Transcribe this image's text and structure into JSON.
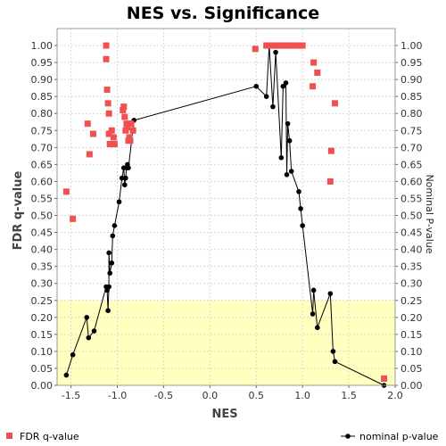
{
  "chart_data": {
    "type": "scatter",
    "title": "NES vs. Significance",
    "xlabel": "NES",
    "ylabel_left": "FDR q-value",
    "ylabel_right": "Nominal P-value",
    "xlim": [
      -1.65,
      2.0
    ],
    "ylim": [
      0.0,
      1.05
    ],
    "x_ticks": [
      "-1.5",
      "-1.0",
      "-0.5",
      "0.0",
      "0.5",
      "1.0",
      "1.5",
      "2.0"
    ],
    "y_ticks": [
      "0.00",
      "0.05",
      "0.10",
      "0.15",
      "0.20",
      "0.25",
      "0.30",
      "0.35",
      "0.40",
      "0.45",
      "0.50",
      "0.55",
      "0.60",
      "0.65",
      "0.70",
      "0.75",
      "0.80",
      "0.85",
      "0.90",
      "0.95",
      "1.00"
    ],
    "highlight_band": {
      "y_range": [
        0.0,
        0.25
      ],
      "color": "#ffffc0"
    },
    "grid": true,
    "legend_position": "bottom",
    "series": [
      {
        "name": "FDR q-value",
        "kind": "scatter-square",
        "color": "#f05050",
        "points": [
          [
            -1.55,
            0.57
          ],
          [
            -1.48,
            0.49
          ],
          [
            -1.32,
            0.77
          ],
          [
            -1.3,
            0.68
          ],
          [
            -1.26,
            0.74
          ],
          [
            -1.12,
            1.0
          ],
          [
            -1.12,
            0.96
          ],
          [
            -1.11,
            0.87
          ],
          [
            -1.1,
            0.83
          ],
          [
            -1.09,
            0.8
          ],
          [
            -1.09,
            0.74
          ],
          [
            -1.08,
            0.71
          ],
          [
            -1.06,
            0.75
          ],
          [
            -1.05,
            0.71
          ],
          [
            -1.04,
            0.73
          ],
          [
            -1.03,
            0.71
          ],
          [
            -0.94,
            0.81
          ],
          [
            -0.93,
            0.82
          ],
          [
            -0.92,
            0.79
          ],
          [
            -0.91,
            0.75
          ],
          [
            -0.9,
            0.77
          ],
          [
            -0.89,
            0.76
          ],
          [
            -0.88,
            0.72
          ],
          [
            -0.87,
            0.73
          ],
          [
            -0.86,
            0.72
          ],
          [
            -0.85,
            0.77
          ],
          [
            -0.83,
            0.75
          ],
          [
            0.49,
            0.99
          ],
          [
            0.61,
            1.0
          ],
          [
            0.64,
            1.0
          ],
          [
            0.67,
            1.0
          ],
          [
            0.69,
            1.0
          ],
          [
            0.71,
            1.0
          ],
          [
            0.73,
            1.0
          ],
          [
            0.75,
            1.0
          ],
          [
            0.77,
            1.0
          ],
          [
            0.79,
            1.0
          ],
          [
            0.81,
            1.0
          ],
          [
            0.83,
            1.0
          ],
          [
            0.85,
            1.0
          ],
          [
            0.87,
            1.0
          ],
          [
            0.89,
            1.0
          ],
          [
            0.91,
            1.0
          ],
          [
            0.96,
            1.0
          ],
          [
            0.98,
            1.0
          ],
          [
            1.0,
            1.0
          ],
          [
            1.11,
            0.88
          ],
          [
            1.12,
            0.95
          ],
          [
            1.16,
            0.92
          ],
          [
            1.3,
            0.6
          ],
          [
            1.31,
            0.69
          ],
          [
            1.35,
            0.83
          ],
          [
            1.88,
            0.02
          ]
        ]
      },
      {
        "name": "nominal p-value",
        "kind": "line-dot",
        "color": "#000000",
        "points": [
          [
            -1.55,
            0.03
          ],
          [
            -1.48,
            0.09
          ],
          [
            -1.33,
            0.2
          ],
          [
            -1.31,
            0.14
          ],
          [
            -1.25,
            0.16
          ],
          [
            -1.12,
            0.29
          ],
          [
            -1.11,
            0.28
          ],
          [
            -1.1,
            0.22
          ],
          [
            -1.09,
            0.29
          ],
          [
            -1.09,
            0.39
          ],
          [
            -1.08,
            0.33
          ],
          [
            -1.06,
            0.36
          ],
          [
            -1.05,
            0.44
          ],
          [
            -1.03,
            0.47
          ],
          [
            -0.98,
            0.54
          ],
          [
            -0.95,
            0.61
          ],
          [
            -0.93,
            0.64
          ],
          [
            -0.92,
            0.59
          ],
          [
            -0.91,
            0.61
          ],
          [
            -0.9,
            0.64
          ],
          [
            -0.89,
            0.65
          ],
          [
            -0.88,
            0.64
          ],
          [
            -0.82,
            0.78
          ],
          [
            0.5,
            0.88
          ],
          [
            0.61,
            0.85
          ],
          [
            0.64,
            1.0
          ],
          [
            0.68,
            0.82
          ],
          [
            0.71,
            0.98
          ],
          [
            0.77,
            0.67
          ],
          [
            0.79,
            0.88
          ],
          [
            0.82,
            0.89
          ],
          [
            0.83,
            0.62
          ],
          [
            0.84,
            0.77
          ],
          [
            0.86,
            0.72
          ],
          [
            0.88,
            0.63
          ],
          [
            0.96,
            0.57
          ],
          [
            0.98,
            0.52
          ],
          [
            1.0,
            0.47
          ],
          [
            1.11,
            0.21
          ],
          [
            1.12,
            0.28
          ],
          [
            1.16,
            0.17
          ],
          [
            1.3,
            0.27
          ],
          [
            1.33,
            0.1
          ],
          [
            1.35,
            0.07
          ],
          [
            1.88,
            0.0
          ]
        ]
      }
    ]
  }
}
